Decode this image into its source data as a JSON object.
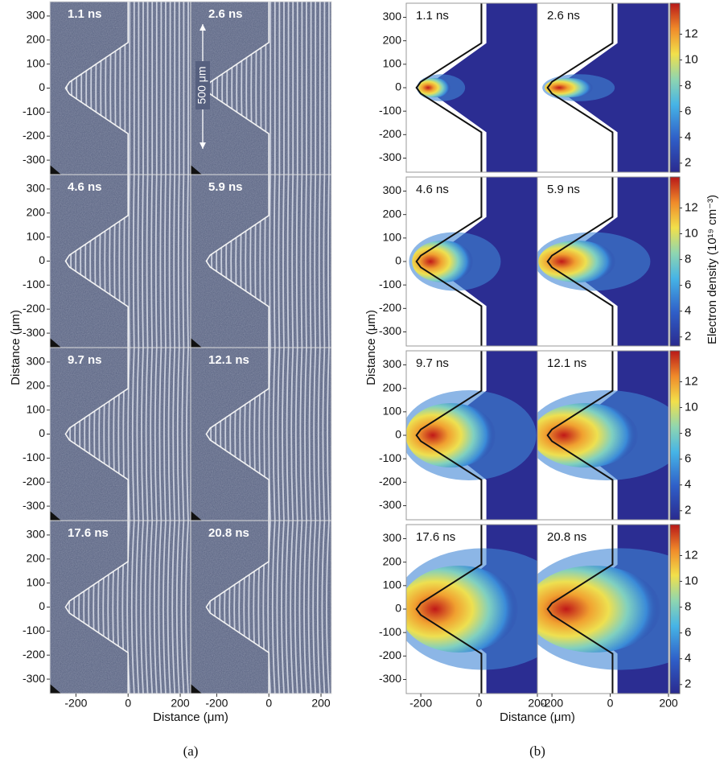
{
  "panel_a": {
    "label": "(a)",
    "xlabel": "Distance (μm)",
    "ylabel": "Distance (μm)",
    "xlim": [
      -300,
      240
    ],
    "ylim": [
      -360,
      360
    ],
    "xticks": [
      -200,
      0,
      200
    ],
    "yticks": [
      300,
      200,
      100,
      0,
      -100,
      -200,
      -300
    ],
    "times": [
      "1.1 ns",
      "2.6 ns",
      "4.6 ns",
      "5.9 ns",
      "9.7 ns",
      "12.1 ns",
      "17.6 ns",
      "20.8 ns"
    ],
    "annotation": "500 μm"
  },
  "panel_b": {
    "label": "(b)",
    "xlabel": "Distance (μm)",
    "ylabel": "Distance (μm)",
    "xlim": [
      -250,
      200
    ],
    "ylim": [
      -360,
      360
    ],
    "xticks": [
      -200,
      0,
      200
    ],
    "yticks": [
      300,
      200,
      100,
      0,
      -100,
      -200,
      -300
    ],
    "times": [
      "1.1 ns",
      "2.6 ns",
      "4.6 ns",
      "5.9 ns",
      "9.7 ns",
      "12.1 ns",
      "17.6 ns",
      "20.8 ns"
    ],
    "colorbar": {
      "label": "Electron density (10¹⁹ cm⁻³)",
      "lim": [
        1.3,
        14.4
      ],
      "ticks": [
        2,
        4,
        6,
        8,
        10,
        12
      ]
    }
  }
}
